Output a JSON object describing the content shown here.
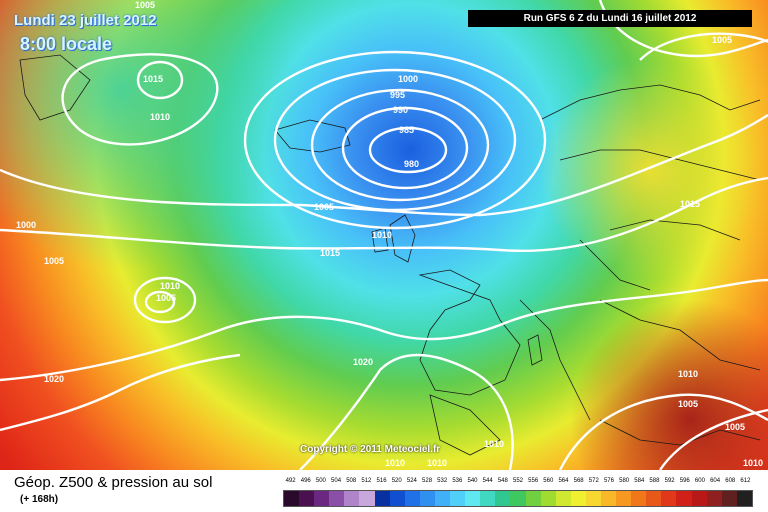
{
  "header": {
    "date_title": "Lundi 23 juillet 2012",
    "time_title": "8:00 locale",
    "run_banner": "Run GFS 6 Z du Lundi 16 juillet 2012"
  },
  "map": {
    "copyright": "Copyright © 2011 Meteociel.fr",
    "isobar_labels": [
      {
        "value": "1005"
      },
      {
        "value": "1015"
      },
      {
        "value": "1010"
      },
      {
        "value": "1000"
      },
      {
        "value": "995"
      },
      {
        "value": "990"
      },
      {
        "value": "985"
      },
      {
        "value": "980"
      },
      {
        "value": "1005"
      },
      {
        "value": "1010"
      },
      {
        "value": "1015"
      },
      {
        "value": "1000"
      },
      {
        "value": "1005"
      },
      {
        "value": "1010"
      },
      {
        "value": "1005"
      },
      {
        "value": "1020"
      },
      {
        "value": "1020"
      },
      {
        "value": "1015"
      },
      {
        "value": "1010"
      },
      {
        "value": "1005"
      },
      {
        "value": "1005"
      },
      {
        "value": "1010"
      },
      {
        "value": "1010"
      },
      {
        "value": "1010"
      },
      {
        "value": "1005"
      },
      {
        "value": "1010"
      }
    ]
  },
  "footer": {
    "title": "Géop. Z500 & pression au sol",
    "subtitle": "(+ 168h)"
  },
  "scale": {
    "values": [
      "492",
      "496",
      "500",
      "504",
      "508",
      "512",
      "516",
      "520",
      "524",
      "528",
      "532",
      "536",
      "540",
      "544",
      "548",
      "552",
      "556",
      "560",
      "564",
      "568",
      "572",
      "576",
      "580",
      "584",
      "588",
      "592",
      "596",
      "600",
      "604",
      "608",
      "612"
    ],
    "colors": [
      "#2a0a2a",
      "#4a1050",
      "#6a2880",
      "#8a50a8",
      "#b084c8",
      "#c8a8dc",
      "#0830a0",
      "#1050d0",
      "#2070e8",
      "#3090f0",
      "#40b0f8",
      "#50d0f8",
      "#60e8f0",
      "#40d8c0",
      "#30c890",
      "#40c860",
      "#70d040",
      "#a0dc30",
      "#d0e830",
      "#f0f030",
      "#f8d830",
      "#f8b828",
      "#f89820",
      "#f07818",
      "#e85818",
      "#e03818",
      "#d02018",
      "#b81818",
      "#902020",
      "#602020",
      "#202020"
    ]
  }
}
